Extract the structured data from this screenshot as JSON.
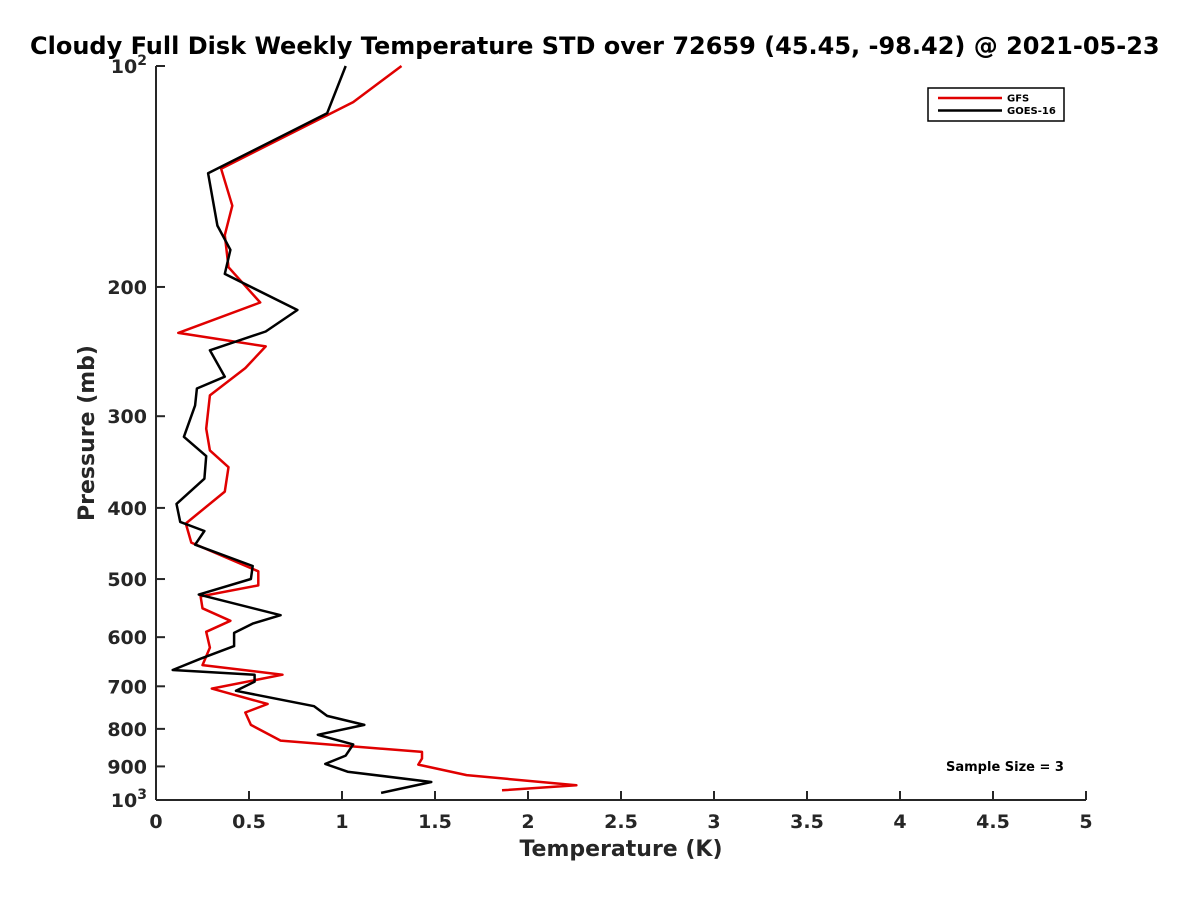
{
  "chart_data": {
    "type": "line",
    "title": "Cloudy Full Disk Weekly Temperature STD over 72659 (45.45, -98.42) @ 2021-05-23",
    "xlabel": "Temperature (K)",
    "ylabel": "Pressure (mb)",
    "xlim": [
      0,
      5
    ],
    "ylim": [
      100,
      1000
    ],
    "y_scale": "log",
    "y_reversed": true,
    "grid": false,
    "legend_position": "top-right",
    "x_ticks": [
      "0",
      "0.5",
      "1",
      "1.5",
      "2",
      "2.5",
      "3",
      "3.5",
      "4",
      "4.5",
      "5"
    ],
    "y_ticks": [
      {
        "value": 100,
        "label": "10",
        "sup": "2"
      },
      {
        "value": 200,
        "label": "200",
        "sup": ""
      },
      {
        "value": 300,
        "label": "300",
        "sup": ""
      },
      {
        "value": 400,
        "label": "400",
        "sup": ""
      },
      {
        "value": 500,
        "label": "500",
        "sup": ""
      },
      {
        "value": 600,
        "label": "600",
        "sup": ""
      },
      {
        "value": 700,
        "label": "700",
        "sup": ""
      },
      {
        "value": 800,
        "label": "800",
        "sup": ""
      },
      {
        "value": 900,
        "label": "900",
        "sup": ""
      },
      {
        "value": 1000,
        "label": "10",
        "sup": "3"
      }
    ],
    "annotation": "Sample Size = 3",
    "series": [
      {
        "name": "GFS",
        "color": "#e00000",
        "x": [
          1.32,
          1.06,
          0.35,
          0.41,
          0.37,
          0.39,
          0.56,
          0.12,
          0.59,
          0.48,
          0.29,
          0.27,
          0.29,
          0.39,
          0.37,
          0.16,
          0.19,
          0.55,
          0.55,
          0.24,
          0.25,
          0.4,
          0.27,
          0.29,
          0.25,
          0.68,
          0.3,
          0.6,
          0.48,
          0.51,
          0.67,
          1.43,
          1.43,
          1.41,
          1.67,
          2.26,
          1.86
        ],
        "y": [
          100,
          112,
          138,
          155,
          170,
          188,
          210,
          231,
          241,
          258,
          281,
          312,
          334,
          352,
          380,
          420,
          446,
          488,
          510,
          528,
          548,
          570,
          590,
          620,
          655,
          675,
          705,
          740,
          760,
          790,
          830,
          860,
          878,
          895,
          925,
          955,
          970
        ]
      },
      {
        "name": "GOES-16",
        "color": "#000000",
        "x": [
          1.02,
          0.92,
          0.28,
          0.33,
          0.4,
          0.37,
          0.76,
          0.59,
          0.29,
          0.37,
          0.22,
          0.21,
          0.15,
          0.27,
          0.26,
          0.11,
          0.13,
          0.26,
          0.21,
          0.52,
          0.51,
          0.23,
          0.67,
          0.52,
          0.42,
          0.42,
          0.24,
          0.09,
          0.53,
          0.53,
          0.43,
          0.85,
          0.92,
          1.12,
          0.87,
          1.06,
          1.02,
          0.91,
          1.03,
          1.48,
          1.21
        ],
        "y": [
          100,
          116,
          140,
          165,
          178,
          192,
          215,
          230,
          244,
          265,
          275,
          290,
          320,
          340,
          365,
          395,
          418,
          430,
          449,
          480,
          500,
          525,
          560,
          575,
          592,
          617,
          642,
          665,
          675,
          690,
          710,
          745,
          768,
          790,
          815,
          840,
          870,
          893,
          915,
          945,
          978
        ]
      }
    ]
  }
}
